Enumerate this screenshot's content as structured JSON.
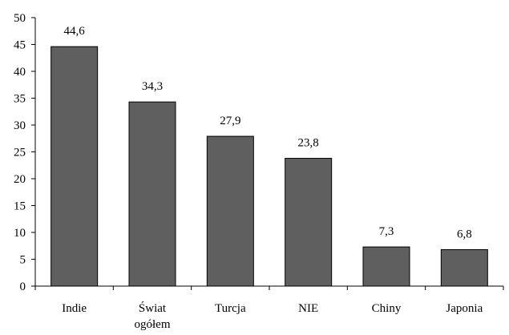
{
  "chart_data": {
    "type": "bar",
    "title": "",
    "xlabel": "",
    "ylabel": "",
    "categories": [
      [
        "Indie"
      ],
      [
        "Świat",
        "ogółem"
      ],
      [
        "Turcja"
      ],
      [
        "NIE"
      ],
      [
        "Chiny"
      ],
      [
        "Japonia"
      ]
    ],
    "values": [
      44.6,
      34.3,
      27.9,
      23.8,
      7.3,
      6.8
    ],
    "value_labels": [
      "44,6",
      "34,3",
      "27,9",
      "23,8",
      "7,3",
      "6,8"
    ],
    "ylim": [
      0,
      50
    ],
    "yticks": [
      0,
      5,
      10,
      15,
      20,
      25,
      30,
      35,
      40,
      45,
      50
    ],
    "grid": false,
    "legend": "none",
    "bar_color": "#5f5f5f"
  }
}
